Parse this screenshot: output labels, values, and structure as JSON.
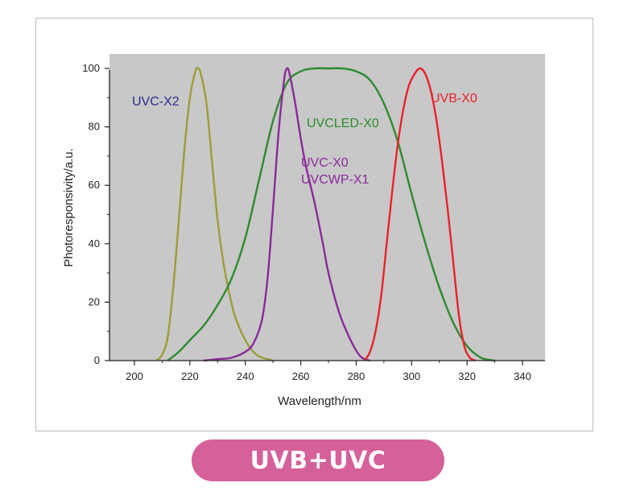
{
  "banner": {
    "label": "UVB+UVC",
    "color": "#d6609a"
  },
  "chart_data": {
    "type": "line",
    "xlabel": "Wavelength/nm",
    "ylabel": "Photoresponsivity/a.u.",
    "xlim": [
      195,
      347
    ],
    "ylim": [
      0,
      100
    ],
    "x_ticks": [
      "200",
      "220",
      "240",
      "260",
      "280",
      "300",
      "320",
      "340"
    ],
    "y_ticks": [
      "0",
      "20",
      "40",
      "60",
      "80",
      "100"
    ],
    "grid": false,
    "background": "#c8c8c8",
    "legend": "none",
    "series": [
      {
        "name": "UVC-X2",
        "color": "#9b9d38",
        "x": [
          208,
          210,
          212,
          214,
          216,
          218,
          220,
          222,
          223,
          224,
          226,
          228,
          230,
          232,
          234,
          236,
          238,
          240,
          242,
          244,
          246,
          248,
          250
        ],
        "y": [
          0,
          2,
          8,
          25,
          48,
          72,
          90,
          99,
          100,
          98,
          88,
          68,
          48,
          34,
          24,
          16,
          11,
          7,
          4,
          2,
          1,
          0.5,
          0
        ]
      },
      {
        "name": "UVCLED-X0",
        "color": "#2e8b2e",
        "x": [
          212,
          216,
          220,
          225,
          230,
          235,
          240,
          245,
          250,
          255,
          260,
          265,
          270,
          275,
          280,
          285,
          290,
          295,
          300,
          305,
          310,
          315,
          320,
          325,
          330
        ],
        "y": [
          0,
          3,
          7,
          12,
          19,
          28,
          42,
          62,
          82,
          95,
          99,
          100,
          100,
          100,
          99,
          96,
          88,
          75,
          57,
          40,
          25,
          13,
          5,
          1,
          0
        ]
      },
      {
        "name": "UVC-X0 / UVCWP-X1",
        "color": "#8a2a9a",
        "x": [
          225,
          230,
          235,
          240,
          243,
          246,
          248,
          250,
          252,
          254,
          255,
          256,
          258,
          260,
          262,
          265,
          268,
          270,
          274,
          278,
          281,
          283,
          285
        ],
        "y": [
          0,
          0.5,
          1,
          3,
          6,
          14,
          28,
          52,
          78,
          96,
          100,
          98,
          88,
          76,
          66,
          54,
          40,
          30,
          16,
          7,
          2,
          0.5,
          0
        ]
      },
      {
        "name": "UVB-X0",
        "color": "#e8222b",
        "x": [
          283,
          285,
          287,
          289,
          291,
          293,
          295,
          297,
          299,
          301,
          303,
          305,
          307,
          309,
          311,
          313,
          315,
          317,
          319,
          321,
          323
        ],
        "y": [
          0,
          3,
          10,
          22,
          40,
          58,
          74,
          86,
          94,
          98,
          100,
          98,
          92,
          82,
          68,
          52,
          34,
          16,
          5,
          1,
          0
        ]
      }
    ],
    "annotations": [
      {
        "text": "UVC-X2",
        "color": "#2a2a8f"
      },
      {
        "text": "UVCLED-X0",
        "color": "#2e8b2e"
      },
      {
        "text": "UVC-X0",
        "color": "#8a2a9a"
      },
      {
        "text": "UVCWP-X1",
        "color": "#8a2a9a"
      },
      {
        "text": "UVB-X0",
        "color": "#e8222b"
      }
    ]
  }
}
